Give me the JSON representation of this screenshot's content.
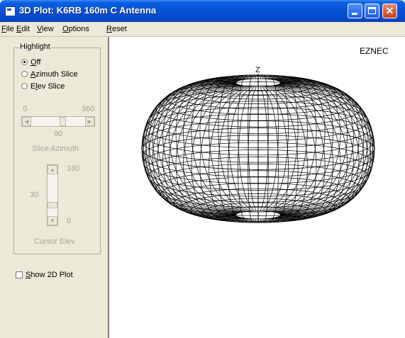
{
  "window": {
    "title": "3D Plot: K6RB 160m C Antenna",
    "controls": {
      "minimize": "",
      "maximize": "",
      "close": "✕"
    }
  },
  "menu": [
    {
      "key": "F",
      "rest": "ile"
    },
    {
      "key": "E",
      "rest": "dit"
    },
    {
      "key": "V",
      "rest": "iew"
    },
    {
      "key": "O",
      "rest": "ptions"
    },
    {
      "key": "R",
      "rest": "eset"
    }
  ],
  "highlight": {
    "group_label": "Highlight",
    "options": [
      {
        "key": "O",
        "rest": "ff",
        "selected": true
      },
      {
        "key": "A",
        "rest": "zimuth Slice",
        "selected": false
      },
      {
        "pre": "E",
        "key": "l",
        "rest": "ev Slice",
        "selected": false
      }
    ]
  },
  "slice_azimuth": {
    "min_label": "0",
    "max_label": "360",
    "value": "90",
    "caption": "Slice Azimuth"
  },
  "cursor_elev": {
    "max_label": "180",
    "min_label": "0",
    "value": "30",
    "caption": "Cursor Elev"
  },
  "show_2d": {
    "key": "S",
    "rest": "how 2D Plot",
    "checked": false
  },
  "plot": {
    "watermark": "EZNEC",
    "z_axis_label": "Z",
    "pattern": "doughnut wireframe"
  },
  "colors": {
    "title_blue": "#0752d6",
    "close_red": "#c2401e",
    "panel": "#ece9d8",
    "disabled_text": "#a8a598"
  }
}
